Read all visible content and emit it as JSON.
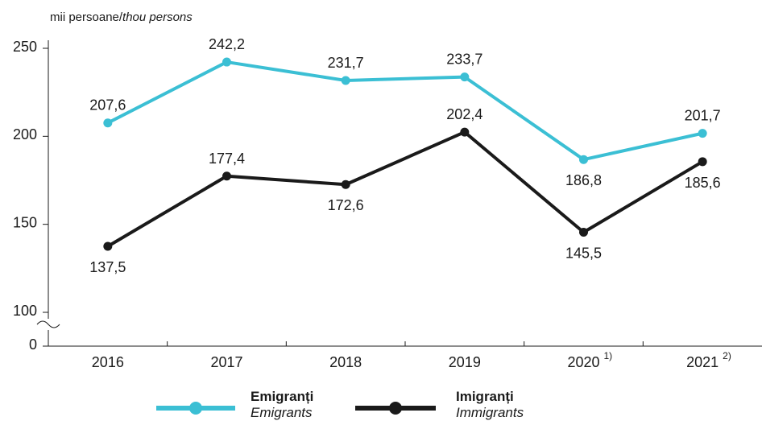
{
  "chart_data": {
    "type": "line",
    "unit_label": {
      "ro": "mii persoane/",
      "en": "thou persons"
    },
    "categories": [
      "2016",
      "2017",
      "2018",
      "2019",
      "2020",
      "2021"
    ],
    "category_superscripts": [
      "",
      "",
      "",
      "",
      "1)",
      "2)"
    ],
    "y_ticks": [
      "250",
      "200",
      "150",
      "100",
      "0"
    ],
    "ylim": [
      100,
      250
    ],
    "axis_break": true,
    "grid": false,
    "series": [
      {
        "name": "Emigranți",
        "name_en": "Emigrants",
        "color": "#3bbfd4",
        "values": [
          207.6,
          242.2,
          231.7,
          233.7,
          186.8,
          201.7
        ],
        "labels": [
          "207,6",
          "242,2",
          "231,7",
          "233,7",
          "186,8",
          "201,7"
        ]
      },
      {
        "name": "Imigranți",
        "name_en": "Immigrants",
        "color": "#1a1a1a",
        "values": [
          137.5,
          177.4,
          172.6,
          202.4,
          145.5,
          185.6
        ],
        "labels": [
          "137,5",
          "177,4",
          "172,6",
          "202,4",
          "145,5",
          "185,6"
        ]
      }
    ],
    "legend_position": "bottom-center"
  }
}
